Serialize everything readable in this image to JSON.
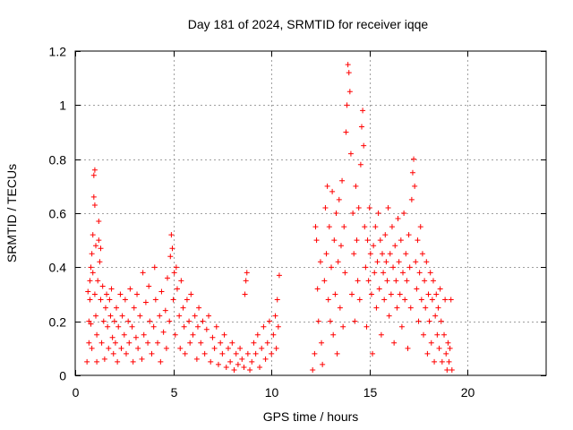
{
  "chart_data": {
    "type": "scatter",
    "title": "Day 181 of 2024, SRMTID for receiver iqqe",
    "xlabel": "GPS time / hours",
    "ylabel": "SRMTID / TECUs",
    "xlim": [
      0,
      24
    ],
    "ylim": [
      0,
      1.2
    ],
    "xticks": [
      0,
      5,
      10,
      15,
      20
    ],
    "xtick_labels": [
      "0",
      "5",
      "10",
      "15",
      "20"
    ],
    "yticks": [
      0,
      0.2,
      0.4,
      0.6,
      0.8,
      1.0,
      1.2
    ],
    "ytick_labels": [
      "0",
      "0.2",
      "0.4",
      "0.6",
      "0.8",
      "1",
      "1.2"
    ],
    "grid": true,
    "marker": "plus",
    "color": "#ff0000",
    "series": [
      {
        "name": "SRMTID",
        "points": [
          [
            0.6,
            0.05
          ],
          [
            0.65,
            0.31
          ],
          [
            0.7,
            0.2
          ],
          [
            0.7,
            0.12
          ],
          [
            0.75,
            0.35
          ],
          [
            0.75,
            0.28
          ],
          [
            0.8,
            0.4
          ],
          [
            0.8,
            0.19
          ],
          [
            0.85,
            0.1
          ],
          [
            0.85,
            0.45
          ],
          [
            0.9,
            0.38
          ],
          [
            0.9,
            0.52
          ],
          [
            0.95,
            0.74
          ],
          [
            0.95,
            0.66
          ],
          [
            1.0,
            0.76
          ],
          [
            1.0,
            0.63
          ],
          [
            1.0,
            0.3
          ],
          [
            1.05,
            0.48
          ],
          [
            1.05,
            0.22
          ],
          [
            1.1,
            0.05
          ],
          [
            1.1,
            0.15
          ],
          [
            1.15,
            0.35
          ],
          [
            1.2,
            0.5
          ],
          [
            1.2,
            0.57
          ],
          [
            1.25,
            0.42
          ],
          [
            1.3,
            0.47
          ],
          [
            1.3,
            0.28
          ],
          [
            1.35,
            0.12
          ],
          [
            1.4,
            0.33
          ],
          [
            1.45,
            0.2
          ],
          [
            1.5,
            0.06
          ],
          [
            1.55,
            0.25
          ],
          [
            1.6,
            0.3
          ],
          [
            1.65,
            0.18
          ],
          [
            1.7,
            0.1
          ],
          [
            1.75,
            0.28
          ],
          [
            1.8,
            0.22
          ],
          [
            1.85,
            0.32
          ],
          [
            1.9,
            0.14
          ],
          [
            1.95,
            0.08
          ],
          [
            2.0,
            0.2
          ],
          [
            2.05,
            0.12
          ],
          [
            2.1,
            0.25
          ],
          [
            2.15,
            0.05
          ],
          [
            2.2,
            0.18
          ],
          [
            2.3,
            0.3
          ],
          [
            2.35,
            0.1
          ],
          [
            2.4,
            0.22
          ],
          [
            2.5,
            0.15
          ],
          [
            2.55,
            0.28
          ],
          [
            2.6,
            0.08
          ],
          [
            2.7,
            0.2
          ],
          [
            2.75,
            0.12
          ],
          [
            2.8,
            0.32
          ],
          [
            2.9,
            0.18
          ],
          [
            2.95,
            0.05
          ],
          [
            3.0,
            0.25
          ],
          [
            3.1,
            0.14
          ],
          [
            3.15,
            0.3
          ],
          [
            3.2,
            0.1
          ],
          [
            3.3,
            0.22
          ],
          [
            3.4,
            0.06
          ],
          [
            3.45,
            0.38
          ],
          [
            3.5,
            0.15
          ],
          [
            3.6,
            0.27
          ],
          [
            3.7,
            0.12
          ],
          [
            3.75,
            0.33
          ],
          [
            3.8,
            0.2
          ],
          [
            3.9,
            0.08
          ],
          [
            4.0,
            0.18
          ],
          [
            4.05,
            0.4
          ],
          [
            4.1,
            0.28
          ],
          [
            4.2,
            0.12
          ],
          [
            4.3,
            0.22
          ],
          [
            4.35,
            0.05
          ],
          [
            4.4,
            0.31
          ],
          [
            4.5,
            0.16
          ],
          [
            4.6,
            0.24
          ],
          [
            4.65,
            0.1
          ],
          [
            4.7,
            0.36
          ],
          [
            4.8,
            0.2
          ],
          [
            4.85,
            0.44
          ],
          [
            4.9,
            0.52
          ],
          [
            4.95,
            0.47
          ],
          [
            5.0,
            0.28
          ],
          [
            5.05,
            0.38
          ],
          [
            5.1,
            0.15
          ],
          [
            5.15,
            0.4
          ],
          [
            5.2,
            0.32
          ],
          [
            5.3,
            0.22
          ],
          [
            5.35,
            0.1
          ],
          [
            5.4,
            0.35
          ],
          [
            5.5,
            0.25
          ],
          [
            5.55,
            0.18
          ],
          [
            5.6,
            0.08
          ],
          [
            5.7,
            0.28
          ],
          [
            5.8,
            0.2
          ],
          [
            5.85,
            0.12
          ],
          [
            5.9,
            0.3
          ],
          [
            6.0,
            0.15
          ],
          [
            6.1,
            0.22
          ],
          [
            6.2,
            0.06
          ],
          [
            6.25,
            0.18
          ],
          [
            6.3,
            0.25
          ],
          [
            6.4,
            0.12
          ],
          [
            6.5,
            0.2
          ],
          [
            6.6,
            0.08
          ],
          [
            6.7,
            0.17
          ],
          [
            6.8,
            0.22
          ],
          [
            6.9,
            0.05
          ],
          [
            7.0,
            0.14
          ],
          [
            7.1,
            0.1
          ],
          [
            7.2,
            0.18
          ],
          [
            7.3,
            0.04
          ],
          [
            7.4,
            0.12
          ],
          [
            7.5,
            0.08
          ],
          [
            7.6,
            0.15
          ],
          [
            7.7,
            0.03
          ],
          [
            7.8,
            0.1
          ],
          [
            7.9,
            0.05
          ],
          [
            8.0,
            0.12
          ],
          [
            8.1,
            0.02
          ],
          [
            8.2,
            0.08
          ],
          [
            8.3,
            0.04
          ],
          [
            8.4,
            0.1
          ],
          [
            8.5,
            0.06
          ],
          [
            8.6,
            0.03
          ],
          [
            8.65,
            0.3
          ],
          [
            8.7,
            0.35
          ],
          [
            8.75,
            0.38
          ],
          [
            8.8,
            0.08
          ],
          [
            8.9,
            0.02
          ],
          [
            9.0,
            0.05
          ],
          [
            9.1,
            0.12
          ],
          [
            9.2,
            0.08
          ],
          [
            9.3,
            0.15
          ],
          [
            9.4,
            0.03
          ],
          [
            9.5,
            0.1
          ],
          [
            9.6,
            0.18
          ],
          [
            9.7,
            0.06
          ],
          [
            9.8,
            0.12
          ],
          [
            9.9,
            0.2
          ],
          [
            10.0,
            0.08
          ],
          [
            10.1,
            0.15
          ],
          [
            10.2,
            0.22
          ],
          [
            10.25,
            0.1
          ],
          [
            10.3,
            0.28
          ],
          [
            10.35,
            0.18
          ],
          [
            10.4,
            0.37
          ],
          [
            12.1,
            0.02
          ],
          [
            12.2,
            0.08
          ],
          [
            12.25,
            0.55
          ],
          [
            12.3,
            0.5
          ],
          [
            12.35,
            0.32
          ],
          [
            12.4,
            0.2
          ],
          [
            12.5,
            0.42
          ],
          [
            12.55,
            0.12
          ],
          [
            12.6,
            0.04
          ],
          [
            12.7,
            0.35
          ],
          [
            12.75,
            0.62
          ],
          [
            12.8,
            0.45
          ],
          [
            12.85,
            0.7
          ],
          [
            12.9,
            0.28
          ],
          [
            12.95,
            0.55
          ],
          [
            13.0,
            0.2
          ],
          [
            13.05,
            0.4
          ],
          [
            13.1,
            0.68
          ],
          [
            13.15,
            0.15
          ],
          [
            13.2,
            0.5
          ],
          [
            13.25,
            0.3
          ],
          [
            13.3,
            0.6
          ],
          [
            13.35,
            0.08
          ],
          [
            13.4,
            0.42
          ],
          [
            13.45,
            0.65
          ],
          [
            13.5,
            0.25
          ],
          [
            13.55,
            0.48
          ],
          [
            13.6,
            0.72
          ],
          [
            13.65,
            0.18
          ],
          [
            13.7,
            0.55
          ],
          [
            13.75,
            0.38
          ],
          [
            13.8,
            0.9
          ],
          [
            13.85,
            1.0
          ],
          [
            13.9,
            1.15
          ],
          [
            13.95,
            1.12
          ],
          [
            14.0,
            1.05
          ],
          [
            14.05,
            0.82
          ],
          [
            14.1,
            0.3
          ],
          [
            14.15,
            0.6
          ],
          [
            14.2,
            0.45
          ],
          [
            14.25,
            0.2
          ],
          [
            14.3,
            0.7
          ],
          [
            14.35,
            0.5
          ],
          [
            14.4,
            0.35
          ],
          [
            14.45,
            0.62
          ],
          [
            14.5,
            0.28
          ],
          [
            14.55,
            0.78
          ],
          [
            14.6,
            0.92
          ],
          [
            14.65,
            0.98
          ],
          [
            14.7,
            0.85
          ],
          [
            14.75,
            0.55
          ],
          [
            14.8,
            0.4
          ],
          [
            14.85,
            0.18
          ],
          [
            14.9,
            0.5
          ],
          [
            14.95,
            0.35
          ],
          [
            15.0,
            0.62
          ],
          [
            15.05,
            0.45
          ],
          [
            15.1,
            0.3
          ],
          [
            15.15,
            0.08
          ],
          [
            15.2,
            0.48
          ],
          [
            15.25,
            0.38
          ],
          [
            15.3,
            0.55
          ],
          [
            15.35,
            0.25
          ],
          [
            15.4,
            0.42
          ],
          [
            15.45,
            0.6
          ],
          [
            15.5,
            0.32
          ],
          [
            15.55,
            0.5
          ],
          [
            15.6,
            0.15
          ],
          [
            15.65,
            0.45
          ],
          [
            15.7,
            0.38
          ],
          [
            15.75,
            0.28
          ],
          [
            15.8,
            0.52
          ],
          [
            15.85,
            0.42
          ],
          [
            15.9,
            0.35
          ],
          [
            15.95,
            0.62
          ],
          [
            16.0,
            0.22
          ],
          [
            16.05,
            0.45
          ],
          [
            16.1,
            0.3
          ],
          [
            16.15,
            0.55
          ],
          [
            16.2,
            0.4
          ],
          [
            16.25,
            0.12
          ],
          [
            16.3,
            0.48
          ],
          [
            16.35,
            0.35
          ],
          [
            16.4,
            0.25
          ],
          [
            16.45,
            0.58
          ],
          [
            16.5,
            0.42
          ],
          [
            16.55,
            0.3
          ],
          [
            16.6,
            0.5
          ],
          [
            16.65,
            0.18
          ],
          [
            16.7,
            0.38
          ],
          [
            16.75,
            0.6
          ],
          [
            16.8,
            0.28
          ],
          [
            16.85,
            0.45
          ],
          [
            16.9,
            0.35
          ],
          [
            16.95,
            0.1
          ],
          [
            17.0,
            0.52
          ],
          [
            17.05,
            0.4
          ],
          [
            17.1,
            0.25
          ],
          [
            17.15,
            0.65
          ],
          [
            17.2,
            0.75
          ],
          [
            17.25,
            0.8
          ],
          [
            17.3,
            0.7
          ],
          [
            17.35,
            0.42
          ],
          [
            17.4,
            0.32
          ],
          [
            17.45,
            0.5
          ],
          [
            17.5,
            0.2
          ],
          [
            17.55,
            0.38
          ],
          [
            17.6,
            0.55
          ],
          [
            17.65,
            0.28
          ],
          [
            17.7,
            0.45
          ],
          [
            17.75,
            0.15
          ],
          [
            17.8,
            0.35
          ],
          [
            17.85,
            0.25
          ],
          [
            17.9,
            0.42
          ],
          [
            17.95,
            0.08
          ],
          [
            18.0,
            0.3
          ],
          [
            18.05,
            0.2
          ],
          [
            18.1,
            0.38
          ],
          [
            18.15,
            0.12
          ],
          [
            18.2,
            0.28
          ],
          [
            18.25,
            0.35
          ],
          [
            18.3,
            0.05
          ],
          [
            18.35,
            0.22
          ],
          [
            18.4,
            0.3
          ],
          [
            18.45,
            0.15
          ],
          [
            18.5,
            0.25
          ],
          [
            18.55,
            0.1
          ],
          [
            18.6,
            0.32
          ],
          [
            18.65,
            0.2
          ],
          [
            18.7,
            0.05
          ],
          [
            18.8,
            0.15
          ],
          [
            18.85,
            0.28
          ],
          [
            18.9,
            0.08
          ],
          [
            18.95,
            0.02
          ],
          [
            19.0,
            0.12
          ],
          [
            19.05,
            0.05
          ],
          [
            19.1,
            0.1
          ],
          [
            19.15,
            0.28
          ],
          [
            19.2,
            0.02
          ]
        ]
      }
    ]
  }
}
